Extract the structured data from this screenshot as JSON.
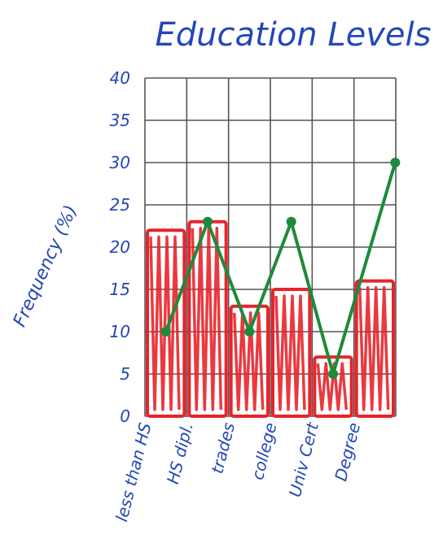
{
  "chart_data": {
    "type": "bar",
    "title": "Education Levels",
    "ylabel": "Frequency (%)",
    "xlabel": "",
    "ylim": [
      0,
      40
    ],
    "grid": true,
    "y_ticks": [
      "0",
      "5",
      "10",
      "15",
      "20",
      "25",
      "30",
      "35",
      "40"
    ],
    "categories": [
      "less than HS",
      "HS dipl.",
      "trades",
      "college",
      "Univ Cert",
      "Degree"
    ],
    "series": [
      {
        "values": [
          22,
          23,
          13,
          15,
          7,
          16
        ]
      },
      {
        "values": [
          10,
          23,
          10,
          23,
          5,
          30
        ]
      }
    ],
    "colors": {
      "bars": "#e8232a",
      "line": "#1e8a3a",
      "text": "#2447b8",
      "grid": "#555555"
    }
  }
}
